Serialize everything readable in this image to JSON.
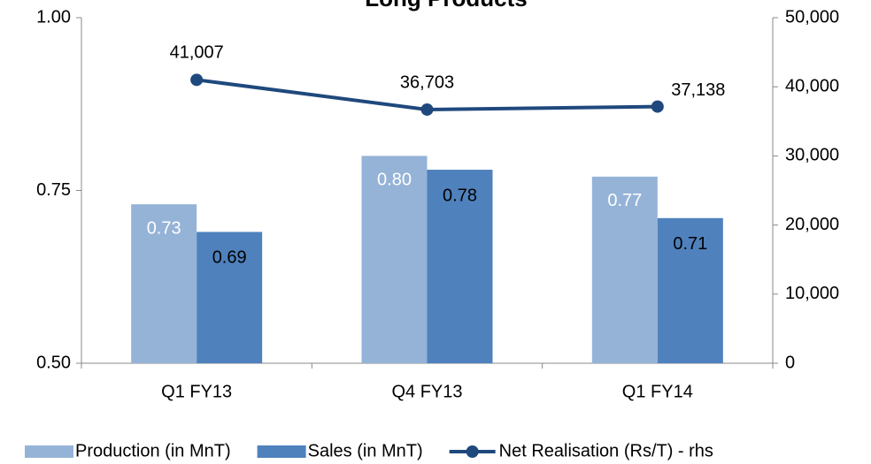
{
  "chart_data": {
    "type": "bar",
    "title": "Long Products",
    "categories": [
      "Q1 FY13",
      "Q4 FY13",
      "Q1 FY14"
    ],
    "series": [
      {
        "name": "Production (in MnT)",
        "color": "#95b3d7",
        "values": [
          0.73,
          0.8,
          0.77
        ],
        "value_labels": [
          "0.73",
          "0.80",
          "0.77"
        ]
      },
      {
        "name": "Sales (in MnT)",
        "color": "#4f81bd",
        "values": [
          0.69,
          0.78,
          0.71
        ],
        "value_labels": [
          "0.69",
          "0.78",
          "0.71"
        ]
      },
      {
        "name": "Net Realisation (Rs/T) - rhs",
        "color": "#1f497d",
        "type": "line",
        "axis": "y2",
        "values": [
          41007,
          36703,
          37138
        ],
        "value_labels": [
          "41,007",
          "36,703",
          "37,138"
        ]
      }
    ],
    "ylim": [
      0.5,
      1.0
    ],
    "yticks": [
      {
        "value": 0.5,
        "label": "0.50"
      },
      {
        "value": 0.75,
        "label": "0.75"
      },
      {
        "value": 1.0,
        "label": "1.00"
      }
    ],
    "y2lim": [
      0,
      50000
    ],
    "y2ticks": [
      0,
      {
        "value": 10000,
        "label": "10,000"
      },
      {
        "value": 20000,
        "label": "20,000"
      },
      {
        "value": 30000,
        "label": "30,000"
      },
      {
        "value": 40000,
        "label": "40,000"
      },
      {
        "value": 50000,
        "label": "50,000"
      }
    ],
    "legend": "bottom"
  }
}
